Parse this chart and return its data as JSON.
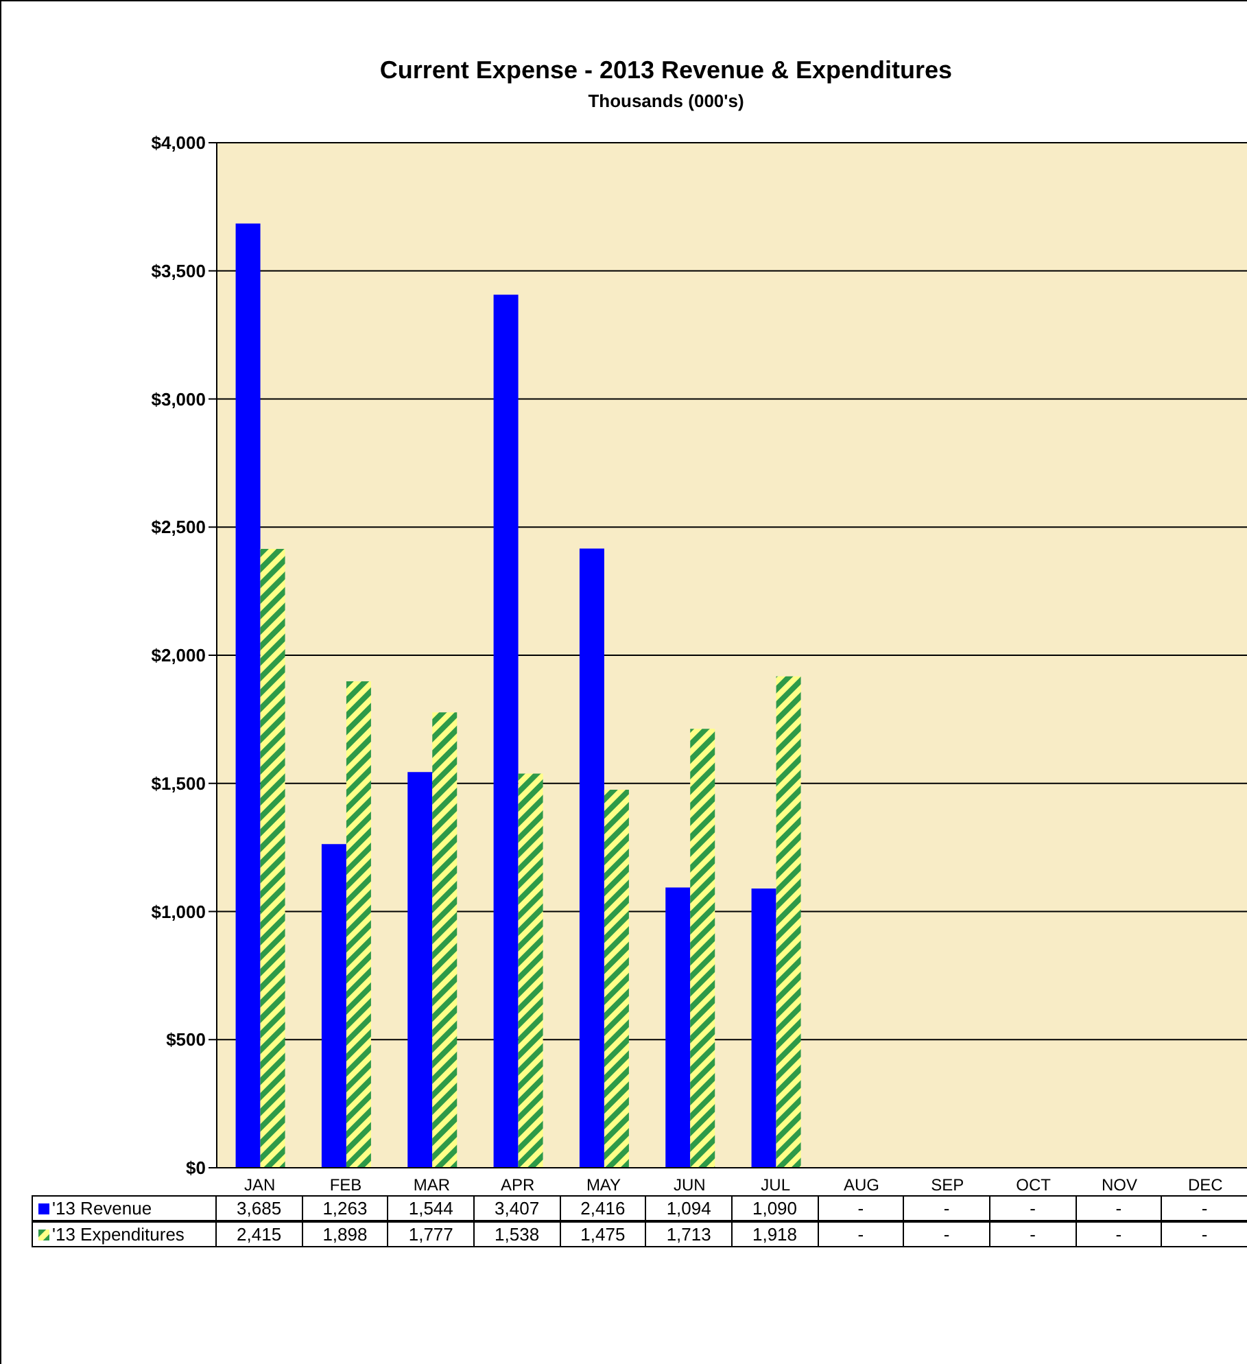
{
  "chart_data": {
    "type": "bar",
    "title": "Current Expense - 2013 Revenue & Expenditures",
    "subtitle": "Thousands (000's)",
    "categories": [
      "JAN",
      "FEB",
      "MAR",
      "APR",
      "MAY",
      "JUN",
      "JUL",
      "AUG",
      "SEP",
      "OCT",
      "NOV",
      "DEC"
    ],
    "series": [
      {
        "name": "'13 Revenue",
        "color": "#0000ff",
        "values": [
          3685,
          1263,
          1544,
          3407,
          2416,
          1094,
          1090,
          null,
          null,
          null,
          null,
          null
        ],
        "value_labels": [
          "3,685",
          "1,263",
          "1,544",
          "3,407",
          "2,416",
          "1,094",
          "1,090",
          "-",
          "-",
          "-",
          "-",
          "-"
        ]
      },
      {
        "name": "'13 Expenditures",
        "color": "#2e9a48",
        "values": [
          2415,
          1898,
          1777,
          1538,
          1475,
          1713,
          1918,
          null,
          null,
          null,
          null,
          null
        ],
        "value_labels": [
          "2,415",
          "1,898",
          "1,777",
          "1,538",
          "1,475",
          "1,713",
          "1,918",
          "-",
          "-",
          "-",
          "-",
          "-"
        ]
      }
    ],
    "ylim": [
      0,
      4000
    ],
    "yticks": [
      {
        "value": 0,
        "label": "$0"
      },
      {
        "value": 500,
        "label": "$500"
      },
      {
        "value": 1000,
        "label": "$1,000"
      },
      {
        "value": 1500,
        "label": "$1,500"
      },
      {
        "value": 2000,
        "label": "$2,000"
      },
      {
        "value": 2500,
        "label": "$2,500"
      },
      {
        "value": 3000,
        "label": "$3,000"
      },
      {
        "value": 3500,
        "label": "$3,500"
      },
      {
        "value": 4000,
        "label": "$4,000"
      }
    ],
    "grid": "y",
    "legend": "bottom"
  }
}
